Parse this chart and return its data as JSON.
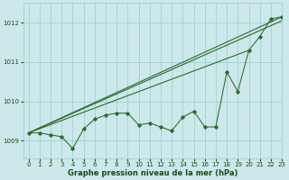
{
  "background_color": "#cce8ea",
  "grid_color": "#99cccc",
  "line_color": "#2d6a2d",
  "text_color": "#1a4a1a",
  "xlabel": "Graphe pression niveau de la mer (hPa)",
  "xlim": [
    -0.5,
    23
  ],
  "ylim": [
    1008.55,
    1012.5
  ],
  "yticks": [
    1009,
    1010,
    1011,
    1012
  ],
  "xticks": [
    0,
    1,
    2,
    3,
    4,
    5,
    6,
    7,
    8,
    9,
    10,
    11,
    12,
    13,
    14,
    15,
    16,
    17,
    18,
    19,
    20,
    21,
    22,
    23
  ],
  "main_series": [
    1009.2,
    1009.2,
    1009.15,
    1009.1,
    1008.8,
    1009.3,
    1009.55,
    1009.65,
    1009.7,
    1009.7,
    1009.4,
    1009.45,
    1009.35,
    1009.25,
    1009.6,
    1009.75,
    1009.35,
    1009.35,
    1010.75,
    1010.25,
    1011.3,
    1011.65,
    1012.1,
    1012.15
  ],
  "trend_line1": [
    [
      0,
      23
    ],
    [
      1009.2,
      1012.15
    ]
  ],
  "trend_line2": [
    [
      0,
      23
    ],
    [
      1009.2,
      1012.05
    ]
  ],
  "trend_line3": [
    [
      0,
      20
    ],
    [
      1009.2,
      1011.3
    ]
  ]
}
